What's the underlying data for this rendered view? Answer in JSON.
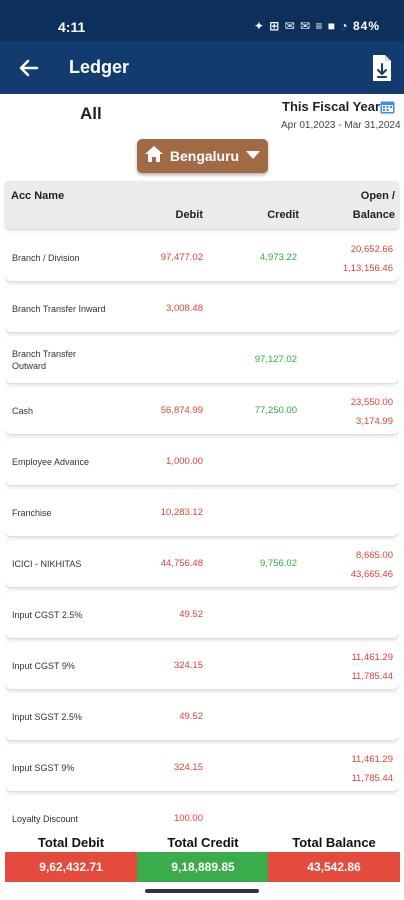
{
  "status_bar": {
    "time": "4:11",
    "icons_text": "✦ ⊞ ✉ ✉  ≡ ■ ◔",
    "battery": "84%"
  },
  "app_bar": {
    "title": "Ledger"
  },
  "filters": {
    "account_filter": "All",
    "fiscal_label": "This Fiscal Year",
    "fiscal_range": "Apr 01,2023 - Mar 31,2024",
    "branch": "Bengaluru"
  },
  "table": {
    "headers": {
      "acc_name": "Acc Name",
      "debit": "Debit",
      "credit": "Credit",
      "open": "Open /",
      "balance": "Balance"
    },
    "rows": [
      {
        "name": "Branch / Division",
        "debit": "97,477.02",
        "credit": "4,973.22",
        "open": "20,652.66",
        "balance": "1,13,156.46"
      },
      {
        "name": "Branch Transfer Inward",
        "debit": "3,008.48",
        "credit": "",
        "open": "",
        "balance": ""
      },
      {
        "name": "Branch Transfer Outward",
        "debit": "",
        "credit": "97,127.02",
        "open": "",
        "balance": ""
      },
      {
        "name": "Cash",
        "debit": "56,874.99",
        "credit": "77,250.00",
        "open": "23,550.00",
        "balance": "3,174.99"
      },
      {
        "name": "Employee Advance",
        "debit": "1,000.00",
        "credit": "",
        "open": "",
        "balance": ""
      },
      {
        "name": "Franchise",
        "debit": "10,283.12",
        "credit": "",
        "open": "",
        "balance": ""
      },
      {
        "name": "ICICI - NIKHITAS",
        "debit": "44,756.48",
        "credit": "9,756.02",
        "open": "8,665.00",
        "balance": "43,665.46"
      },
      {
        "name": "Input CGST 2.5%",
        "debit": "49.52",
        "credit": "",
        "open": "",
        "balance": ""
      },
      {
        "name": "Input CGST 9%",
        "debit": "324.15",
        "credit": "",
        "open": "11,461.29",
        "balance": "11,785.44"
      },
      {
        "name": "Input SGST 2.5%",
        "debit": "49.52",
        "credit": "",
        "open": "",
        "balance": ""
      },
      {
        "name": "Input SGST 9%",
        "debit": "324.15",
        "credit": "",
        "open": "11,461.29",
        "balance": "11,785.44"
      },
      {
        "name": "Loyalty Discount",
        "debit": "100.00",
        "credit": "",
        "open": "",
        "balance": ""
      }
    ]
  },
  "totals": {
    "debit_label": "Total Debit",
    "debit_value": "9,62,432.71",
    "credit_label": "Total Credit",
    "credit_value": "9,18,889.85",
    "balance_label": "Total Balance",
    "balance_value": "43,542.86"
  },
  "colors": {
    "header_blue": "#123b70",
    "debit_red": "#e0403c",
    "credit_green": "#34a845",
    "branch_brown": "#a26a44"
  }
}
